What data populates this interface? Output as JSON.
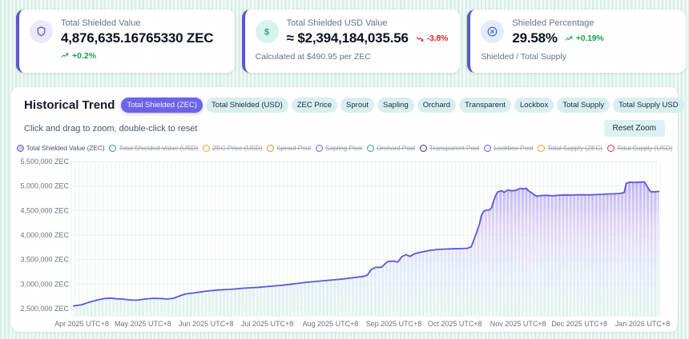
{
  "theme": {
    "accent": "#5b55d6",
    "positive": "#16a34a",
    "negative": "#dc2626",
    "tab_active_bg": "#6e63e8",
    "tab_inactive_bg": "#d9eef0",
    "background_stripe": "#d7eee7"
  },
  "cards": [
    {
      "name": "total-shielded-value",
      "icon": "shield-icon",
      "icon_bg": "#eae8fb",
      "icon_color": "#5b55d6",
      "label": "Total Shielded Value",
      "value": "4,876,635.16765330 ZEC",
      "change": "+0.2%",
      "change_dir": "up",
      "change_inline": false,
      "footer": ""
    },
    {
      "name": "total-shielded-usd-value",
      "icon": "dollar-icon",
      "icon_bg": "#d9f2ec",
      "icon_color": "#2a9d8f",
      "label": "Total Shielded USD Value",
      "value": "≈ $2,394,184,035.56",
      "change": "-3.8%",
      "change_dir": "down",
      "change_inline": true,
      "footer": "Calculated at $490.95 per ZEC"
    },
    {
      "name": "shielded-percentage",
      "icon": "percent-circle-icon",
      "icon_bg": "#e0ecf8",
      "icon_color": "#4a5ad1",
      "label": "Shielded Percentage",
      "value": "29.58%",
      "change": "+0.19%",
      "change_dir": "up",
      "change_inline": true,
      "footer": "Shielded / Total Supply"
    }
  ],
  "panel": {
    "title": "Historical Trend",
    "hint": "Click and drag to zoom, double-click to reset",
    "reset_button": "Reset Zoom",
    "tabs": [
      {
        "label": "Total Shielded (ZEC)",
        "active": true
      },
      {
        "label": "Total Shielded (USD)",
        "active": false
      },
      {
        "label": "ZEC Price",
        "active": false
      },
      {
        "label": "Sprout",
        "active": false
      },
      {
        "label": "Sapling",
        "active": false
      },
      {
        "label": "Orchard",
        "active": false
      },
      {
        "label": "Transparent",
        "active": false
      },
      {
        "label": "Lockbox",
        "active": false
      },
      {
        "label": "Total Supply",
        "active": false
      },
      {
        "label": "Total Supply USD",
        "active": false
      }
    ]
  },
  "legend": [
    {
      "label": "Total Shielded Value (ZEC)",
      "color": "#6159d6",
      "active": true
    },
    {
      "label": "Total Shielded Value (USD)",
      "color": "#2a9d8f",
      "active": false
    },
    {
      "label": "ZEC Price (USD)",
      "color": "#f4a63a",
      "active": false
    },
    {
      "label": "Sprout Pool",
      "color": "#e8953b",
      "active": false
    },
    {
      "label": "Sapling Pool",
      "color": "#6c63e0",
      "active": false
    },
    {
      "label": "Orchard Pool",
      "color": "#3a9e8c",
      "active": false
    },
    {
      "label": "Transparent Pool",
      "color": "#334155",
      "active": false
    },
    {
      "label": "Lockbox Pool",
      "color": "#4f63e6",
      "active": false
    },
    {
      "label": "Total Supply (ZEC)",
      "color": "#e8a23d",
      "active": false
    },
    {
      "label": "Total Supply (USD)",
      "color": "#d6336c",
      "active": false
    }
  ],
  "chart_data": {
    "type": "area",
    "title": "Historical Trend",
    "grid": "horizontal",
    "legend_position": "top",
    "ylim": [
      2500000,
      5500000
    ],
    "xlim": [
      "2025-03-28",
      "2026-01-09"
    ],
    "yticks": [
      {
        "value": 2500000,
        "label": "2,500,000 ZEC"
      },
      {
        "value": 3000000,
        "label": "3,000,000 ZEC"
      },
      {
        "value": 3500000,
        "label": "3,500,000 ZEC"
      },
      {
        "value": 4000000,
        "label": "4,000,000 ZEC"
      },
      {
        "value": 4500000,
        "label": "4,500,000 ZEC"
      },
      {
        "value": 5000000,
        "label": "5,000,000 ZEC"
      },
      {
        "value": 5500000,
        "label": "5,500,000 ZEC"
      }
    ],
    "xticks": [
      {
        "date": "2025-04-01",
        "label": "Apr 2025 UTC+8"
      },
      {
        "date": "2025-05-01",
        "label": "May 2025 UTC+8"
      },
      {
        "date": "2025-06-01",
        "label": "Jun 2025 UTC+8"
      },
      {
        "date": "2025-07-01",
        "label": "Jul 2025 UTC+8"
      },
      {
        "date": "2025-08-01",
        "label": "Aug 2025 UTC+8"
      },
      {
        "date": "2025-09-01",
        "label": "Sep 2025 UTC+8"
      },
      {
        "date": "2025-10-01",
        "label": "Oct 2025 UTC+8"
      },
      {
        "date": "2025-11-01",
        "label": "Nov 2025 UTC+8"
      },
      {
        "date": "2025-12-01",
        "label": "Dec 2025 UTC+8"
      },
      {
        "date": "2026-01-01",
        "label": "Jan 2026 UTC+8"
      }
    ],
    "style": {
      "line_color": "#5b57d6",
      "gradient_top": "#918af0",
      "gradient_mid": "#d4bff2",
      "gradient_low": "#cfe3ef",
      "gradient_bottom": "#d5efe8"
    },
    "series": [
      {
        "name": "Total Shielded Value (ZEC)",
        "unit": "ZEC",
        "color": "#5b57d6",
        "points": [
          [
            "2025-03-28",
            2555000
          ],
          [
            "2025-04-01",
            2580000
          ],
          [
            "2025-04-05",
            2635000
          ],
          [
            "2025-04-09",
            2680000
          ],
          [
            "2025-04-12",
            2705000
          ],
          [
            "2025-04-15",
            2715000
          ],
          [
            "2025-04-18",
            2700000
          ],
          [
            "2025-04-21",
            2695000
          ],
          [
            "2025-04-24",
            2680000
          ],
          [
            "2025-04-28",
            2672000
          ],
          [
            "2025-05-02",
            2695000
          ],
          [
            "2025-05-06",
            2710000
          ],
          [
            "2025-05-10",
            2705000
          ],
          [
            "2025-05-13",
            2695000
          ],
          [
            "2025-05-16",
            2710000
          ],
          [
            "2025-05-19",
            2760000
          ],
          [
            "2025-05-22",
            2800000
          ],
          [
            "2025-05-26",
            2820000
          ],
          [
            "2025-05-30",
            2845000
          ],
          [
            "2025-06-03",
            2865000
          ],
          [
            "2025-06-07",
            2880000
          ],
          [
            "2025-06-11",
            2890000
          ],
          [
            "2025-06-15",
            2900000
          ],
          [
            "2025-06-19",
            2915000
          ],
          [
            "2025-06-23",
            2925000
          ],
          [
            "2025-06-27",
            2935000
          ],
          [
            "2025-07-01",
            2950000
          ],
          [
            "2025-07-05",
            2965000
          ],
          [
            "2025-07-09",
            2980000
          ],
          [
            "2025-07-13",
            3000000
          ],
          [
            "2025-07-17",
            3020000
          ],
          [
            "2025-07-21",
            3040000
          ],
          [
            "2025-07-25",
            3055000
          ],
          [
            "2025-07-29",
            3070000
          ],
          [
            "2025-08-02",
            3085000
          ],
          [
            "2025-08-06",
            3100000
          ],
          [
            "2025-08-10",
            3120000
          ],
          [
            "2025-08-14",
            3140000
          ],
          [
            "2025-08-17",
            3155000
          ],
          [
            "2025-08-19",
            3180000
          ],
          [
            "2025-08-21",
            3300000
          ],
          [
            "2025-08-23",
            3340000
          ],
          [
            "2025-08-26",
            3345000
          ],
          [
            "2025-08-29",
            3460000
          ],
          [
            "2025-09-01",
            3470000
          ],
          [
            "2025-09-03",
            3450000
          ],
          [
            "2025-09-05",
            3560000
          ],
          [
            "2025-09-07",
            3600000
          ],
          [
            "2025-09-09",
            3565000
          ],
          [
            "2025-09-11",
            3615000
          ],
          [
            "2025-09-13",
            3640000
          ],
          [
            "2025-09-16",
            3665000
          ],
          [
            "2025-09-19",
            3690000
          ],
          [
            "2025-09-22",
            3705000
          ],
          [
            "2025-09-26",
            3715000
          ],
          [
            "2025-09-30",
            3720000
          ],
          [
            "2025-10-04",
            3725000
          ],
          [
            "2025-10-07",
            3730000
          ],
          [
            "2025-10-09",
            3760000
          ],
          [
            "2025-10-11",
            3980000
          ],
          [
            "2025-10-13",
            4220000
          ],
          [
            "2025-10-14",
            4400000
          ],
          [
            "2025-10-15",
            4480000
          ],
          [
            "2025-10-16",
            4505000
          ],
          [
            "2025-10-18",
            4515000
          ],
          [
            "2025-10-19",
            4560000
          ],
          [
            "2025-10-20",
            4700000
          ],
          [
            "2025-10-21",
            4810000
          ],
          [
            "2025-10-22",
            4880000
          ],
          [
            "2025-10-24",
            4905000
          ],
          [
            "2025-10-25",
            4870000
          ],
          [
            "2025-10-27",
            4920000
          ],
          [
            "2025-10-29",
            4900000
          ],
          [
            "2025-10-31",
            4915000
          ],
          [
            "2025-11-02",
            4950000
          ],
          [
            "2025-11-04",
            4940000
          ],
          [
            "2025-11-05",
            4955000
          ],
          [
            "2025-11-06",
            4905000
          ],
          [
            "2025-11-08",
            4850000
          ],
          [
            "2025-11-10",
            4790000
          ],
          [
            "2025-11-12",
            4805000
          ],
          [
            "2025-11-15",
            4810000
          ],
          [
            "2025-11-18",
            4800000
          ],
          [
            "2025-11-21",
            4812000
          ],
          [
            "2025-11-24",
            4818000
          ],
          [
            "2025-11-27",
            4815000
          ],
          [
            "2025-11-30",
            4820000
          ],
          [
            "2025-12-03",
            4822000
          ],
          [
            "2025-12-06",
            4818000
          ],
          [
            "2025-12-09",
            4825000
          ],
          [
            "2025-12-12",
            4830000
          ],
          [
            "2025-12-15",
            4838000
          ],
          [
            "2025-12-18",
            4842000
          ],
          [
            "2025-12-21",
            4850000
          ],
          [
            "2025-12-23",
            4865000
          ],
          [
            "2025-12-24",
            5055000
          ],
          [
            "2025-12-26",
            5080000
          ],
          [
            "2025-12-28",
            5075000
          ],
          [
            "2025-12-31",
            5080000
          ],
          [
            "2026-01-02",
            5082000
          ],
          [
            "2026-01-04",
            4940000
          ],
          [
            "2026-01-05",
            4885000
          ],
          [
            "2026-01-07",
            4880000
          ],
          [
            "2026-01-09",
            4890000
          ]
        ]
      }
    ]
  }
}
